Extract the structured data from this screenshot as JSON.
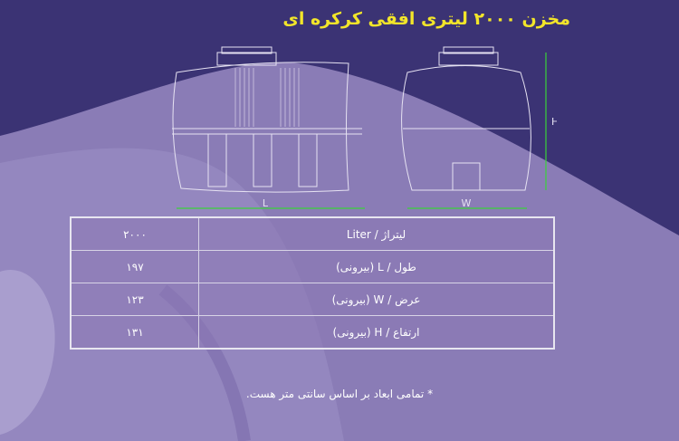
{
  "title": "مخزن ۲۰۰۰ لیتری افقی کرکره ای",
  "diagram": {
    "length_label": "L",
    "width_label": "W",
    "height_label": "H",
    "dimension_color": "#3ad13a"
  },
  "specs": {
    "rows": [
      {
        "label": "لیتراژ / Liter",
        "value": "۲۰۰۰"
      },
      {
        "label": "طول / L (بیرونی)",
        "value": "۱۹۷"
      },
      {
        "label": "عرض / W (بیرونی)",
        "value": "۱۲۳"
      },
      {
        "label": "ارتفاع / H (بیرونی)",
        "value": "۱۳۱"
      }
    ]
  },
  "note": "* تمامی ابعاد بر اساس سانتی متر هست."
}
